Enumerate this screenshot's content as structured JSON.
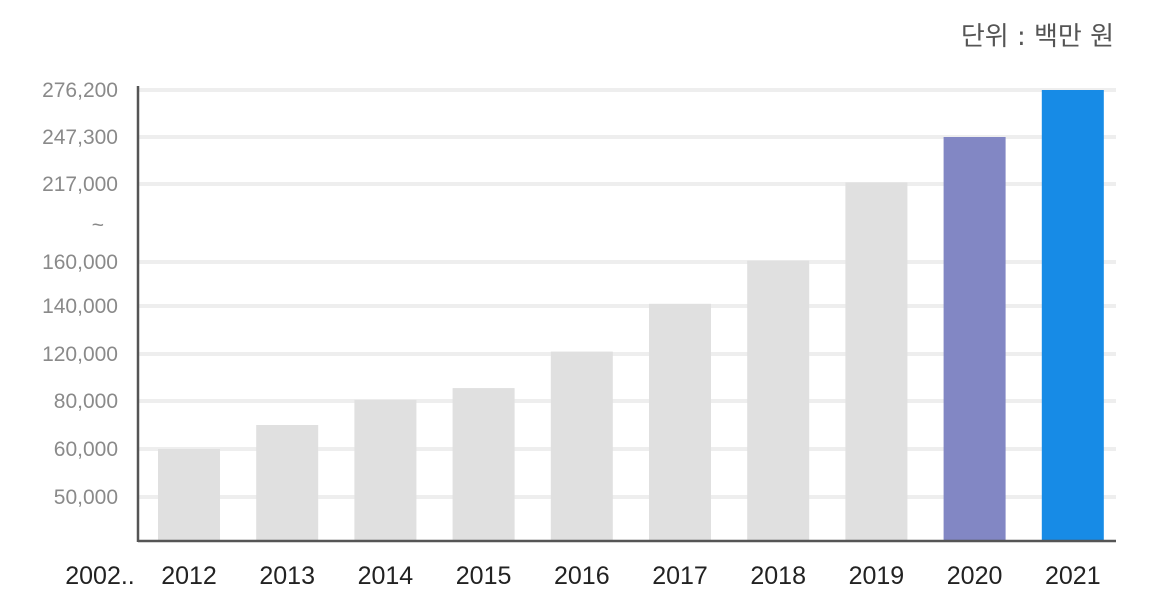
{
  "unit_label": "단위 : 백만 원",
  "chart_data": {
    "type": "bar",
    "title": "",
    "xlabel": "",
    "ylabel": "",
    "unit": "단위 : 백만 원",
    "first_category_label": "2002..",
    "categories": [
      "2012",
      "2013",
      "2014",
      "2015",
      "2016",
      "2017",
      "2018",
      "2019",
      "2020",
      "2021"
    ],
    "values": [
      60000,
      70000,
      81000,
      91000,
      121000,
      141000,
      161000,
      218000,
      247300,
      276200
    ],
    "bar_colors": [
      "#e0e0e0",
      "#e0e0e0",
      "#e0e0e0",
      "#e0e0e0",
      "#e0e0e0",
      "#e0e0e0",
      "#e0e0e0",
      "#e0e0e0",
      "#8287c4",
      "#178be6"
    ],
    "y_ticks": [
      "50,000",
      "60,000",
      "80,000",
      "120,000",
      "140,000",
      "160,000",
      "~",
      "217,000",
      "247,300",
      "276,200"
    ],
    "y_scale": "broken-axis",
    "grid": true,
    "legend": "none"
  }
}
